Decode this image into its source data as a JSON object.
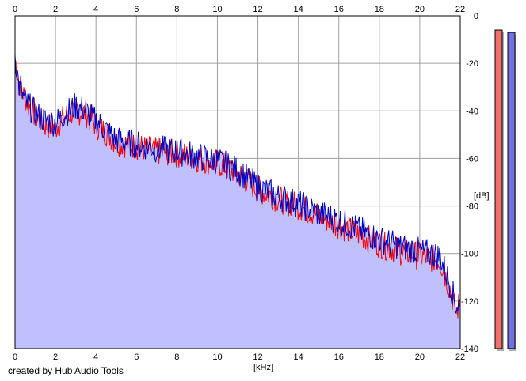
{
  "credit": "created by Hub Audio Tools",
  "chart_data": {
    "type": "area",
    "xlabel": "[kHz]",
    "ylabel": "[dB]",
    "xlim": [
      0,
      22
    ],
    "ylim": [
      -140,
      0
    ],
    "x_ticks": [
      "0",
      "2",
      "4",
      "6",
      "8",
      "10",
      "12",
      "14",
      "16",
      "18",
      "20",
      "22"
    ],
    "y_ticks": [
      "0",
      "-20",
      "-40",
      "-60",
      "-80",
      "-100",
      "-120",
      "-140"
    ],
    "grid": true,
    "series": [
      {
        "color": "#ff0000",
        "x": [
          0,
          0.2,
          0.5,
          1,
          1.5,
          2,
          2.5,
          3,
          3.5,
          4,
          4.5,
          5,
          6,
          7,
          8,
          9,
          10,
          11,
          12,
          13,
          14,
          15,
          16,
          17,
          18,
          19,
          20,
          21,
          21.5,
          21.8,
          22
        ],
        "y": [
          -18,
          -28,
          -35,
          -42,
          -46,
          -47,
          -42,
          -40,
          -41,
          -46,
          -49,
          -53,
          -55,
          -57,
          -58,
          -60,
          -62,
          -66,
          -73,
          -77,
          -80,
          -84,
          -88,
          -92,
          -96,
          -99,
          -101,
          -103,
          -115,
          -125,
          -120
        ]
      },
      {
        "color": "#0000c0",
        "x": [
          0,
          0.2,
          0.5,
          1,
          1.5,
          2,
          2.5,
          3,
          3.5,
          4,
          4.5,
          5,
          6,
          7,
          8,
          9,
          10,
          11,
          12,
          13,
          14,
          15,
          16,
          17,
          18,
          19,
          20,
          21,
          21.5,
          21.8,
          22
        ],
        "y": [
          -16,
          -30,
          -36,
          -41,
          -44,
          -45,
          -41,
          -38,
          -40,
          -44,
          -48,
          -52,
          -54,
          -56,
          -57,
          -59,
          -61,
          -65,
          -72,
          -76,
          -79,
          -83,
          -86,
          -90,
          -94,
          -97,
          -99,
          -101,
          -113,
          -122,
          -121
        ]
      }
    ],
    "fill_color": "#c0c0ff",
    "meters": [
      {
        "color": "#f07070",
        "level": -6
      },
      {
        "color": "#7070e0",
        "level": -7
      }
    ]
  }
}
